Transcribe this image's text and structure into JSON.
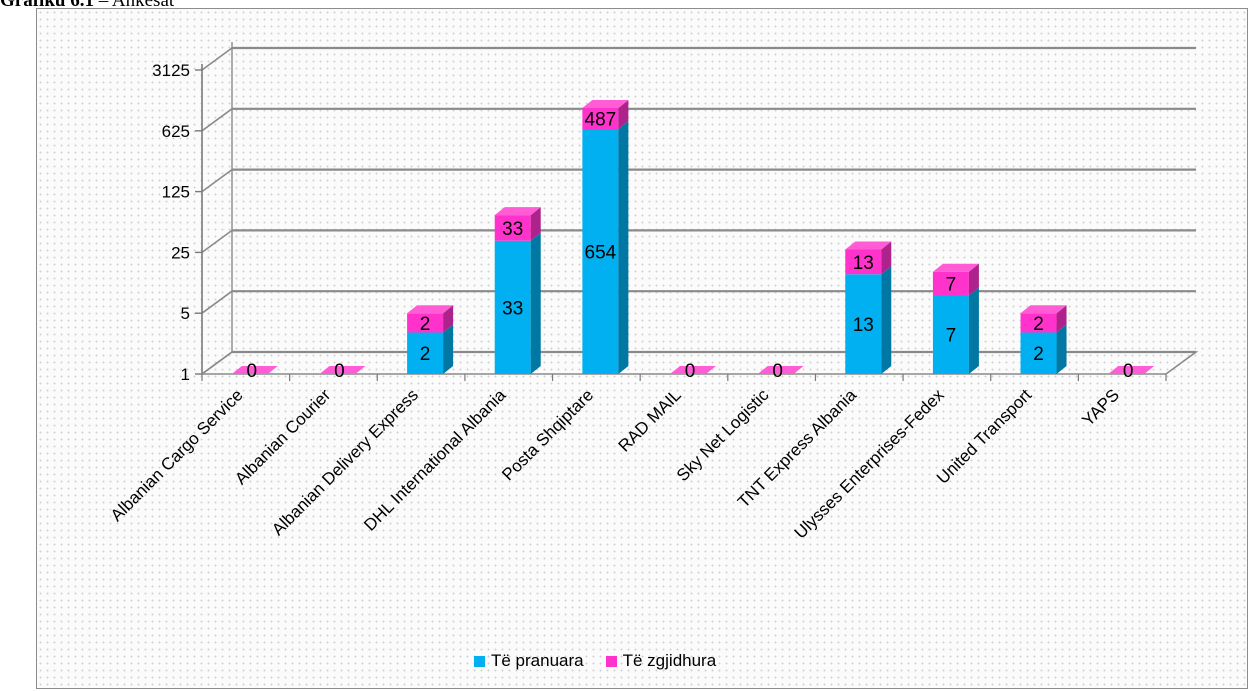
{
  "heading": {
    "bold": "Grafiku 6.1",
    "rest": "– Ankesat"
  },
  "chart_data": {
    "type": "bar",
    "stacked": true,
    "three_d": true,
    "log_scale_base": 5,
    "yticks": [
      1,
      5,
      25,
      125,
      625,
      3125
    ],
    "ylim": [
      1,
      3125
    ],
    "grid": true,
    "legend_position": "bottom",
    "categories": [
      "Albanian Cargo Service",
      "Albanian Courier",
      "Albanian Delivery Express",
      "DHL International Albania",
      "Posta Shqiptare",
      "RAD MAIL",
      "Sky Net Logistic",
      "TNT Express Albania",
      "Ulysses Enterprises-Fedex",
      "United Transport",
      "YAPS"
    ],
    "series": [
      {
        "name": "Të pranuara",
        "color": "#00b0f0",
        "values": [
          0,
          0,
          2,
          33,
          654,
          0,
          0,
          13,
          7,
          2,
          0
        ]
      },
      {
        "name": "Të zgjidhura",
        "color": "#ff33cc",
        "values": [
          0,
          0,
          2,
          33,
          487,
          0,
          0,
          13,
          7,
          2,
          0
        ]
      }
    ]
  }
}
